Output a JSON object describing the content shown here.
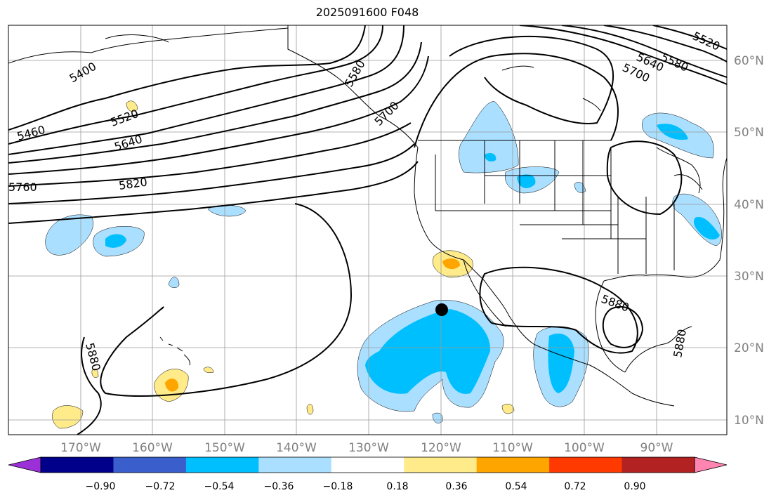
{
  "title": "2025091600 F048",
  "lon_labels": [
    "170°W",
    "160°W",
    "150°W",
    "140°W",
    "130°W",
    "120°W",
    "110°W",
    "100°W",
    "90°W"
  ],
  "lat_labels": [
    "60°N",
    "50°N",
    "40°N",
    "30°N",
    "20°N",
    "10°N"
  ],
  "contour_labels": {
    "c5400": "5400",
    "c5460": "5460",
    "c5520": "5520",
    "c5640": "5640",
    "c5820": "5820",
    "c5760": "5760",
    "c5580a": "5580",
    "c5700a": "5700",
    "c5580b": "5580",
    "c5640b": "5640",
    "c5700b": "5700",
    "c5520b": "5520",
    "c5880a": "5880",
    "c5880b": "5880",
    "c5880c": "5880"
  },
  "colorbar": {
    "ticks": [
      "−0.90",
      "−0.72",
      "−0.54",
      "−0.36",
      "−0.18",
      "0.18",
      "0.36",
      "0.54",
      "0.72",
      "0.90"
    ],
    "colors": [
      "#9b30d9",
      "#00008b",
      "#3a5fcd",
      "#00bfff",
      "#aadfff",
      "#ffffff",
      "#ffeb8a",
      "#ffa500",
      "#ff3a00",
      "#b22222",
      "#ff85b0"
    ]
  },
  "map": {
    "land_color": "#ffffff",
    "neg_light": "#aadfff",
    "neg_mid": "#00bfff",
    "pos_light": "#ffeb8a",
    "pos_mid": "#ffa500",
    "marker_color": "#000000"
  }
}
